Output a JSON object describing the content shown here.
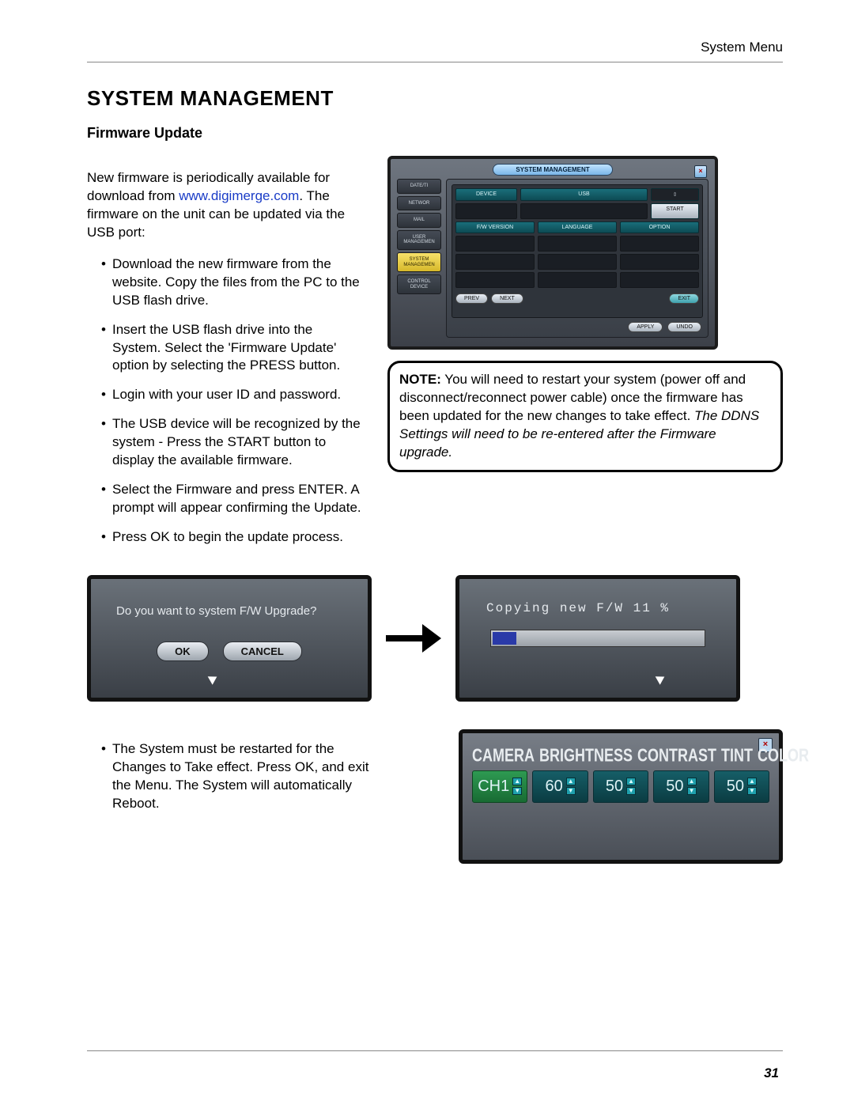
{
  "page": {
    "header": "System Menu",
    "title": "SYSTEM MANAGEMENT",
    "subtitle": "Firmware Update",
    "page_number": "31"
  },
  "intro": {
    "line1": "New firmware is periodically available for download from ",
    "link_text": "www.digimerge.com",
    "line2": ". The firmware on the unit can be updated via the USB port:"
  },
  "steps": [
    "Download the new firmware from the website. Copy the files from the PC to the USB flash drive.",
    "Insert the USB flash drive into the System. Select the 'Firmware Update' option by selecting the PRESS button.",
    "Login with your user ID and password.",
    "The USB device will be recognized by the system - Press the START button to display the available firmware.",
    "Select the Firmware and press ENTER. A prompt will appear confirming the Update.",
    "Press OK to begin the update process."
  ],
  "sys_panel": {
    "title": "SYSTEM MANAGEMENT",
    "tabs": [
      "DATE/TI",
      "NETWOR",
      "MAIL",
      "USER\nMANAGEMEN",
      "SYSTEM\nMANAGEMEN",
      "CONTROL\nDEVICE"
    ],
    "active_tab_index": 4,
    "device_label": "DEVICE",
    "device_value": "USB",
    "start_btn": "START",
    "col_headers": [
      "F/W VERSION",
      "LANGUAGE",
      "OPTION"
    ],
    "prev_btn": "PREV",
    "next_btn": "NEXT",
    "exit_btn": "EXIT",
    "apply_btn": "APPLY",
    "undo_btn": "UNDO"
  },
  "note": {
    "label": "NOTE:",
    "text": " You will need to restart your system (power off and disconnect/reconnect power cable) once the firmware has been updated for the new changes to take effect. ",
    "italic": "The DDNS Settings will need to be re-entered after the Firmware upgrade."
  },
  "dialog": {
    "prompt": "Do you want to system F/W Upgrade?",
    "ok": "OK",
    "cancel": "CANCEL"
  },
  "progress": {
    "text": "Copying new F/W  11 %",
    "percent": 11
  },
  "restart_step": "The System must be restarted for the Changes to Take effect. Press OK, and exit the Menu. The System will automatically Reboot.",
  "camera_panel": {
    "headers": [
      "CAMERA",
      "BRIGHTNESS",
      "CONTRAST",
      "TINT",
      "COLOR"
    ],
    "channel": "CH1",
    "values": [
      60,
      50,
      50,
      50
    ]
  },
  "colors": {
    "link": "#1a3cc7",
    "teal_cell": "#1a6e7a",
    "progress_fill": "#2a3aa8"
  }
}
